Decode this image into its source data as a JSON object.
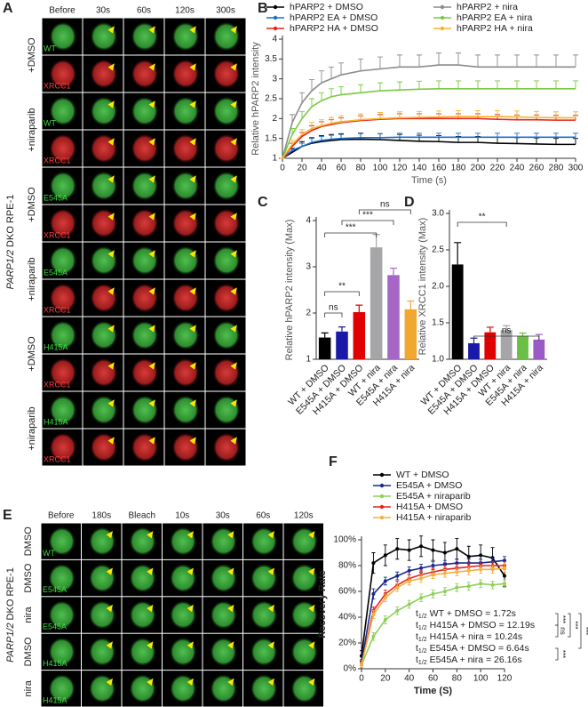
{
  "panels": {
    "letters": [
      "A",
      "B",
      "C",
      "D",
      "E",
      "F"
    ]
  },
  "panel_a": {
    "columns": [
      "Before",
      "30s",
      "60s",
      "120s",
      "300s"
    ],
    "cell_labels": [
      "WT",
      "XRCC1",
      "WT",
      "XRCC1",
      "E545A",
      "XRCC1",
      "E545A",
      "XRCC1",
      "H415A",
      "XRCC1",
      "H415A",
      "XRCC1"
    ],
    "treatments": [
      "+DMSO",
      "+niraparib",
      "+DMSO",
      "+niraparib",
      "+DMSO",
      "+niraparib"
    ],
    "gene": "PARP1/2",
    "cell_line": "DKO RPE-1"
  },
  "panel_e": {
    "columns": [
      "Before",
      "180s",
      "Bleach",
      "10s",
      "30s",
      "60s",
      "120s"
    ],
    "cell_labels": [
      "WT",
      "E545A",
      "E545A",
      "H415A",
      "H415A"
    ],
    "treatments": [
      "DMSO",
      "DMSO",
      "nira",
      "DMSO",
      "nira"
    ],
    "gene": "PARP1/2",
    "cell_line": "DKO RPE-1"
  },
  "chart_data": [
    {
      "type": "line",
      "x_label": "Time (s)",
      "y_label": "Relative hPARP2 intensity",
      "x": [
        0,
        10,
        20,
        30,
        40,
        50,
        60,
        80,
        100,
        120,
        140,
        160,
        180,
        200,
        220,
        240,
        260,
        280,
        300
      ],
      "xlim": [
        0,
        300
      ],
      "xticks": [
        0,
        20,
        40,
        60,
        80,
        100,
        120,
        140,
        160,
        180,
        200,
        220,
        240,
        260,
        280,
        300
      ],
      "ylim": [
        1,
        4
      ],
      "yticks": [
        1,
        1.5,
        2,
        2.5,
        3,
        3.5,
        4
      ],
      "series": [
        {
          "name": "hPARP2 + DMSO",
          "color": "#000000",
          "values": [
            1,
            1.15,
            1.3,
            1.38,
            1.42,
            1.45,
            1.47,
            1.48,
            1.47,
            1.45,
            1.43,
            1.42,
            1.4,
            1.4,
            1.38,
            1.37,
            1.36,
            1.35,
            1.35
          ],
          "errors": [
            0,
            0.08,
            0.12,
            0.14,
            0.15,
            0.15,
            0.15,
            0.15,
            0.15,
            0.15,
            0.15,
            0.15,
            0.15,
            0.15,
            0.15,
            0.15,
            0.15,
            0.15,
            0.15
          ]
        },
        {
          "name": "hPARP2 + nira",
          "color": "#8c8c8c",
          "values": [
            1,
            1.9,
            2.4,
            2.7,
            2.9,
            3.0,
            3.1,
            3.2,
            3.25,
            3.3,
            3.3,
            3.35,
            3.35,
            3.3,
            3.3,
            3.3,
            3.3,
            3.3,
            3.3
          ],
          "errors": [
            0,
            0.2,
            0.25,
            0.28,
            0.3,
            0.3,
            0.3,
            0.3,
            0.3,
            0.3,
            0.3,
            0.3,
            0.3,
            0.3,
            0.3,
            0.3,
            0.3,
            0.3,
            0.3
          ]
        },
        {
          "name": "hPARP2 EA + DMSO",
          "color": "#1f6fc5",
          "values": [
            1,
            1.2,
            1.3,
            1.4,
            1.45,
            1.48,
            1.5,
            1.52,
            1.52,
            1.53,
            1.53,
            1.53,
            1.53,
            1.53,
            1.53,
            1.53,
            1.53,
            1.53,
            1.53
          ],
          "errors": [
            0,
            0.06,
            0.08,
            0.1,
            0.1,
            0.1,
            0.1,
            0.1,
            0.1,
            0.1,
            0.1,
            0.1,
            0.1,
            0.1,
            0.1,
            0.1,
            0.1,
            0.1,
            0.1
          ]
        },
        {
          "name": "hPARP2 EA + nira",
          "color": "#7ac943",
          "values": [
            1,
            1.6,
            2.0,
            2.3,
            2.45,
            2.55,
            2.6,
            2.65,
            2.7,
            2.72,
            2.74,
            2.75,
            2.75,
            2.75,
            2.75,
            2.75,
            2.75,
            2.75,
            2.75
          ],
          "errors": [
            0,
            0.15,
            0.18,
            0.2,
            0.2,
            0.2,
            0.2,
            0.2,
            0.2,
            0.2,
            0.2,
            0.2,
            0.2,
            0.2,
            0.2,
            0.2,
            0.2,
            0.2,
            0.2
          ]
        },
        {
          "name": "hPARP2 HA + DMSO",
          "color": "#e52421",
          "values": [
            1,
            1.3,
            1.55,
            1.7,
            1.8,
            1.85,
            1.9,
            1.95,
            1.98,
            2.0,
            2.0,
            2.0,
            2.0,
            2.0,
            1.98,
            1.97,
            1.97,
            1.96,
            1.96
          ],
          "errors": [
            0,
            0.08,
            0.1,
            0.12,
            0.12,
            0.12,
            0.12,
            0.12,
            0.12,
            0.12,
            0.12,
            0.12,
            0.12,
            0.12,
            0.12,
            0.12,
            0.12,
            0.12,
            0.12
          ]
        },
        {
          "name": "hPARP2 HA + nira",
          "color": "#f7b32b",
          "values": [
            1,
            1.35,
            1.6,
            1.75,
            1.82,
            1.88,
            1.92,
            1.97,
            2.0,
            2.02,
            2.03,
            2.04,
            2.05,
            2.05,
            2.05,
            2.04,
            2.03,
            2.02,
            2.02
          ],
          "errors": [
            0,
            0.1,
            0.12,
            0.15,
            0.15,
            0.15,
            0.15,
            0.15,
            0.15,
            0.15,
            0.15,
            0.15,
            0.15,
            0.15,
            0.15,
            0.15,
            0.15,
            0.15,
            0.15
          ]
        }
      ]
    },
    {
      "type": "bar",
      "y_label": "Relative hPARP2 intensity (Max)",
      "categories": [
        "WT + DMSO",
        "E545A + DMSO",
        "H415A + DMSO",
        "WT + nira",
        "E545A + nira",
        "H415A + nira"
      ],
      "values": [
        1.47,
        1.6,
        2.02,
        3.42,
        2.82,
        2.08
      ],
      "errors": [
        0.1,
        0.1,
        0.15,
        0.28,
        0.15,
        0.18
      ],
      "colors": [
        "#000000",
        "#1a1aa8",
        "#e00000",
        "#a6a6a8",
        "#a666c6",
        "#f0a830"
      ],
      "ylim": [
        1,
        4
      ],
      "yticks": [
        1,
        2,
        3,
        4
      ],
      "annotations": [
        "ns",
        "**",
        "***",
        "***",
        "ns"
      ]
    },
    {
      "type": "bar",
      "y_label": "Relative XRCC1 intensity (Max)",
      "categories": [
        "WT + DMSO",
        "E545A + DMSO",
        "H415A + DMSO",
        "WT + nira",
        "E545A + nira",
        "H415A + nira"
      ],
      "values": [
        2.3,
        1.22,
        1.37,
        1.4,
        1.32,
        1.27
      ],
      "errors": [
        0.3,
        0.07,
        0.07,
        0.06,
        0.04,
        0.07
      ],
      "colors": [
        "#000000",
        "#1a1aa8",
        "#e00000",
        "#a6a6a8",
        "#6abf45",
        "#9a5cc4"
      ],
      "ylim": [
        1,
        3
      ],
      "yticks": [
        {
          "value": 1,
          "label": "1.0"
        },
        {
          "value": 1.5,
          "label": "1.5"
        },
        {
          "value": 2,
          "label": "2.0"
        },
        {
          "value": 2.5,
          "label": "2.5"
        },
        {
          "value": 3,
          "label": "3.0"
        }
      ],
      "annotations": [
        "**",
        "ns"
      ]
    },
    {
      "type": "scatter",
      "x_label": "Time (S)",
      "y_label": "Recovery Rate",
      "x": [
        0,
        10,
        20,
        30,
        40,
        50,
        60,
        70,
        80,
        90,
        100,
        110,
        120
      ],
      "xlim": [
        0,
        120
      ],
      "xticks": [
        0,
        20,
        40,
        60,
        80,
        100,
        120
      ],
      "ylim": [
        0,
        100
      ],
      "yticks": [
        {
          "value": 0,
          "label": "0%"
        },
        {
          "value": 20,
          "label": "20%"
        },
        {
          "value": 40,
          "label": "40%"
        },
        {
          "value": 60,
          "label": "60%"
        },
        {
          "value": 80,
          "label": "80%"
        },
        {
          "value": 100,
          "label": "100%"
        }
      ],
      "series": [
        {
          "name": "WT + DMSO",
          "color": "#000000",
          "values": [
            10,
            82,
            88,
            93,
            92,
            95,
            92,
            90,
            93,
            87,
            88,
            86,
            72
          ],
          "errors": [
            4,
            8,
            8,
            8,
            8,
            8,
            8,
            8,
            8,
            8,
            8,
            8,
            8
          ]
        },
        {
          "name": "E545A + DMSO",
          "color": "#1a2a8c",
          "values": [
            5,
            58,
            68,
            72,
            76,
            78,
            80,
            81,
            82,
            82,
            82,
            83,
            84
          ],
          "errors": [
            2,
            4,
            3,
            3,
            3,
            3,
            3,
            3,
            3,
            3,
            3,
            3,
            3
          ]
        },
        {
          "name": "E545A + niraparib",
          "color": "#8fcf5a",
          "values": [
            3,
            25,
            38,
            45,
            50,
            55,
            58,
            60,
            63,
            64,
            66,
            65,
            66
          ],
          "errors": [
            2,
            3,
            3,
            3,
            3,
            3,
            3,
            3,
            3,
            3,
            3,
            3,
            3
          ]
        },
        {
          "name": "H415A + DMSO",
          "color": "#e52421",
          "values": [
            3,
            45,
            58,
            65,
            70,
            73,
            75,
            77,
            78,
            79,
            80,
            80,
            80
          ],
          "errors": [
            2,
            3,
            3,
            3,
            3,
            3,
            3,
            3,
            3,
            3,
            3,
            3,
            3
          ]
        },
        {
          "name": "H415A + niraparib",
          "color": "#f5b041",
          "values": [
            3,
            42,
            55,
            63,
            68,
            70,
            73,
            74,
            75,
            76,
            77,
            77,
            78
          ],
          "errors": [
            2,
            3,
            3,
            3,
            3,
            3,
            3,
            3,
            3,
            3,
            3,
            3,
            3
          ]
        }
      ],
      "half_life_symbol": "t",
      "half_life_subscript": "1/2",
      "annotations": [
        "WT + DMSO = 1.72s",
        "H415A + DMSO = 12.19s",
        "H415A + nira = 10.24s",
        "E545A + DMSO =  6.64s",
        "E545A + nira = 26.16s"
      ],
      "significance": [
        "***",
        "ns",
        "***",
        "***",
        "***"
      ]
    }
  ]
}
